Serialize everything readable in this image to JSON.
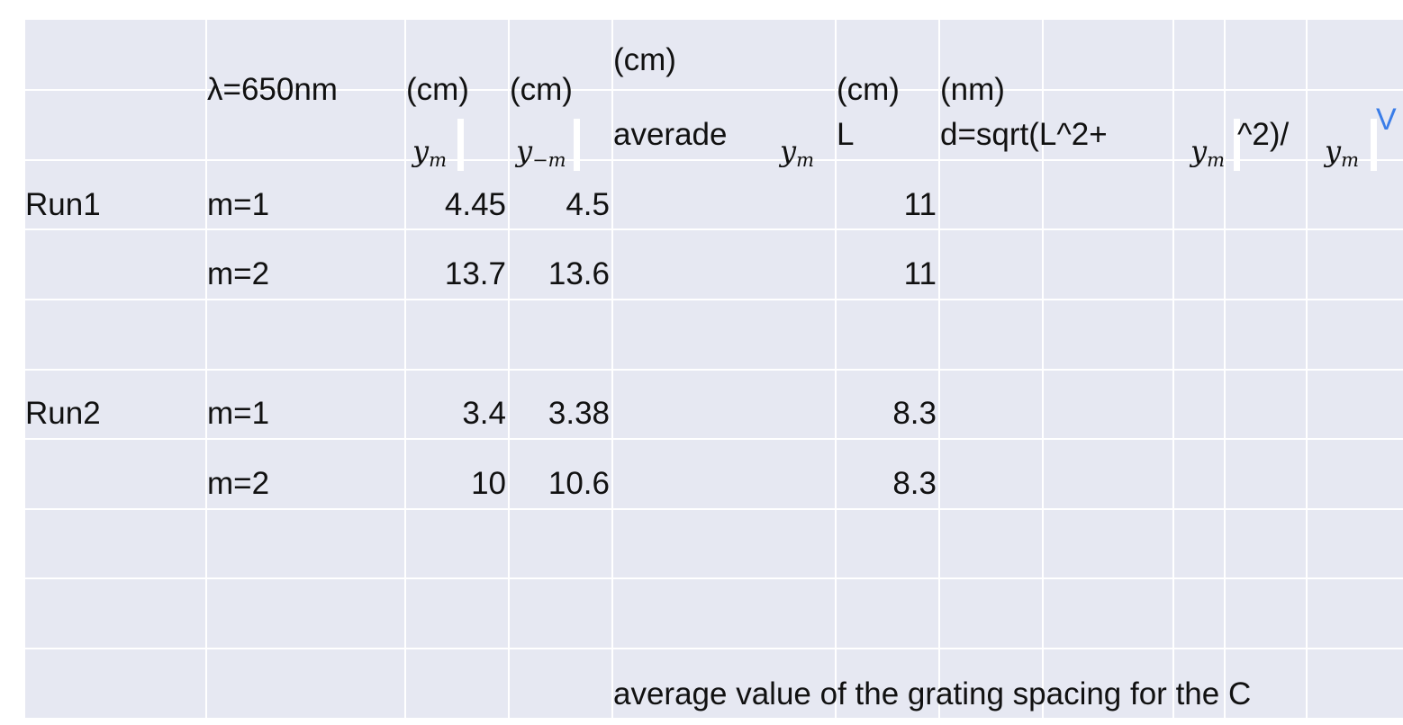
{
  "header_row_1": {
    "wavelength": "λ=650nm",
    "unit_ym": "(cm)",
    "unit_y_minus_m": "(cm)",
    "unit_average": "(cm)",
    "unit_L": "(cm)",
    "unit_d": "(nm)"
  },
  "header_row_2": {
    "ym_symbol": "y",
    "ym_sub": "m",
    "y_minus_m_symbol": "y",
    "y_minus_m_sub": "−m",
    "average_label": "averade",
    "average_ym_symbol": "y",
    "average_ym_sub": "m",
    "L_label": "L",
    "d_formula_start": "d=sqrt(L^2+",
    "d_formula_ym_symbol": "y",
    "d_formula_ym_sub": "m",
    "d_formula_end": "^2)/",
    "d_formula_ym2_symbol": "y",
    "d_formula_ym2_sub": "m",
    "handwritten_mark": "V"
  },
  "rows": [
    {
      "run": "Run1",
      "order": "m=1",
      "ym": "4.45",
      "y_minus_m": "4.5",
      "L": "11"
    },
    {
      "run": "",
      "order": "m=2",
      "ym": "13.7",
      "y_minus_m": "13.6",
      "L": "11"
    },
    {
      "run": "Run2",
      "order": "m=1",
      "ym": "3.4",
      "y_minus_m": "3.38",
      "L": "8.3"
    },
    {
      "run": "",
      "order": "m=2",
      "ym": "10",
      "y_minus_m": "10.6",
      "L": "8.3"
    }
  ],
  "footer_text": "average value of the grating spacing for the C"
}
